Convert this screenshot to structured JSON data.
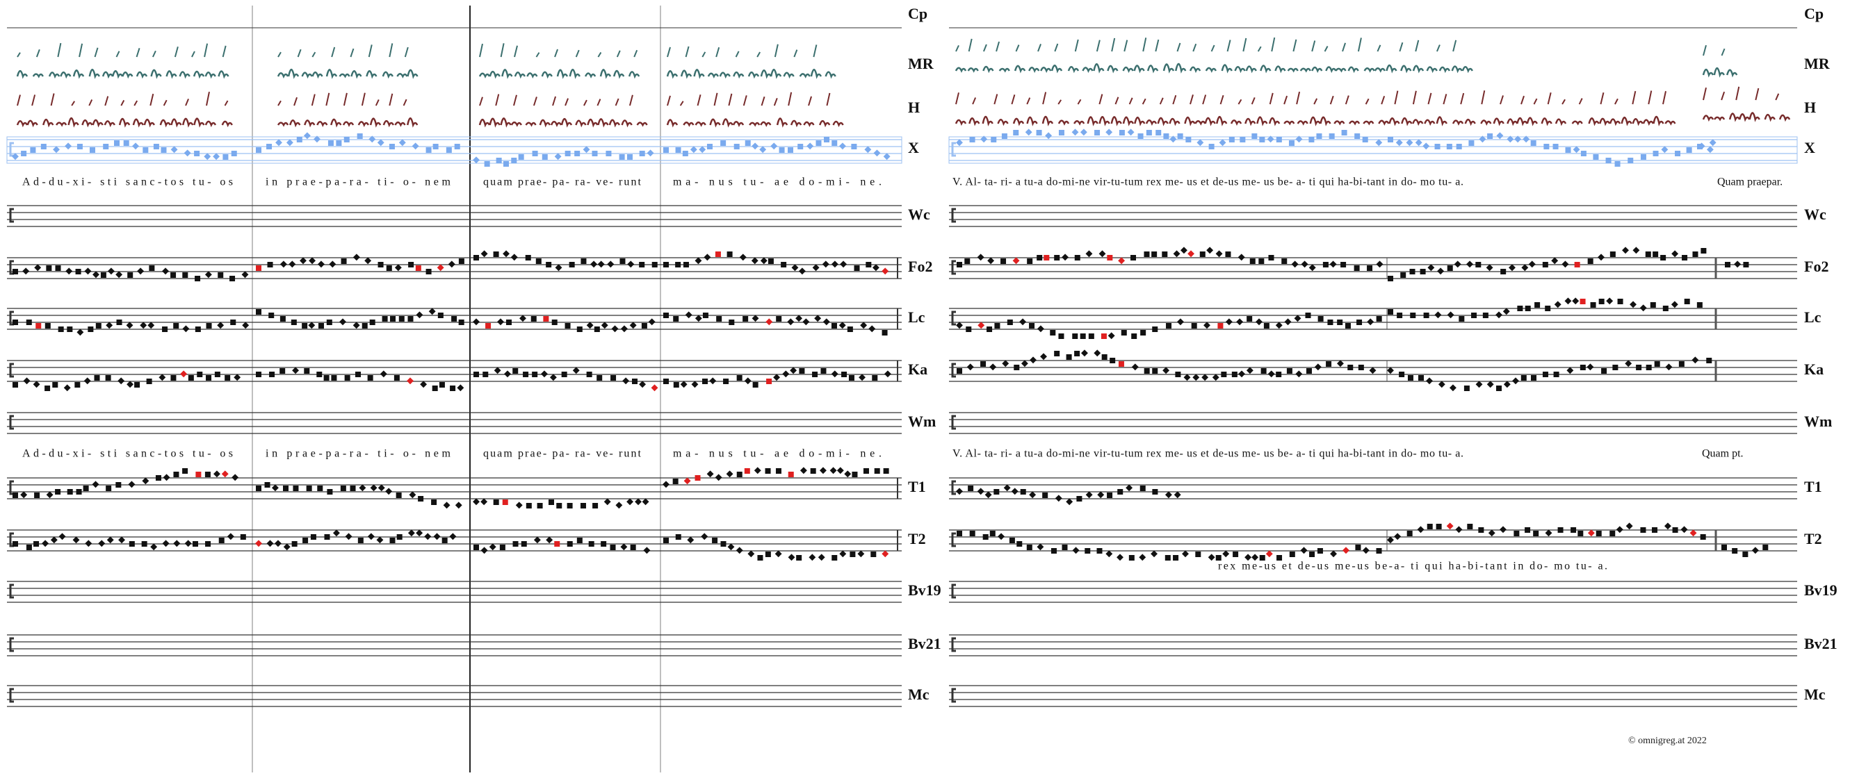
{
  "sigla": [
    "Cp",
    "MR",
    "H",
    "X",
    "Wc",
    "Fo2",
    "Lc",
    "Ka",
    "Wm",
    "T1",
    "T2",
    "Bv19",
    "Bv21",
    "Mc"
  ],
  "lyrics_1": {
    "left": [
      "Ad-du-xi- sti sanc-tos tu- os",
      "in prae-pa-ra- ti- o- nem",
      "quam prae- pa- ra- ve- runt",
      "ma- nus tu- ae do-mi- ne."
    ],
    "right": [
      "V. Al- ta- ri- a tu-a do-mi-ne vir-tu-tum rex me- us et de-us me- us be- a- ti qui ha-bi-tant in do- mo tu- a.",
      "Quam praepar."
    ]
  },
  "lyrics_2": {
    "left": [
      "Ad-du-xi- sti sanc-tos tu- os",
      "in prae-pa-ra- ti- o- nem",
      "quam prae- pa- ra- ve- runt",
      "ma- nus tu- ae do-mi- ne."
    ],
    "right": [
      "V. Al- ta- ri- a tu-a do-mi-ne vir-tu-tum rex me- us et de-us me- us be- a- ti qui ha-bi-tant in do- mo tu- a.",
      "Quam pt."
    ]
  },
  "lyrics_t2": "rex me-us et de-us me-us be-a- ti qui ha-bi-tant in do- mo tu- a.",
  "footer": "© omnigreg.at 2022"
}
